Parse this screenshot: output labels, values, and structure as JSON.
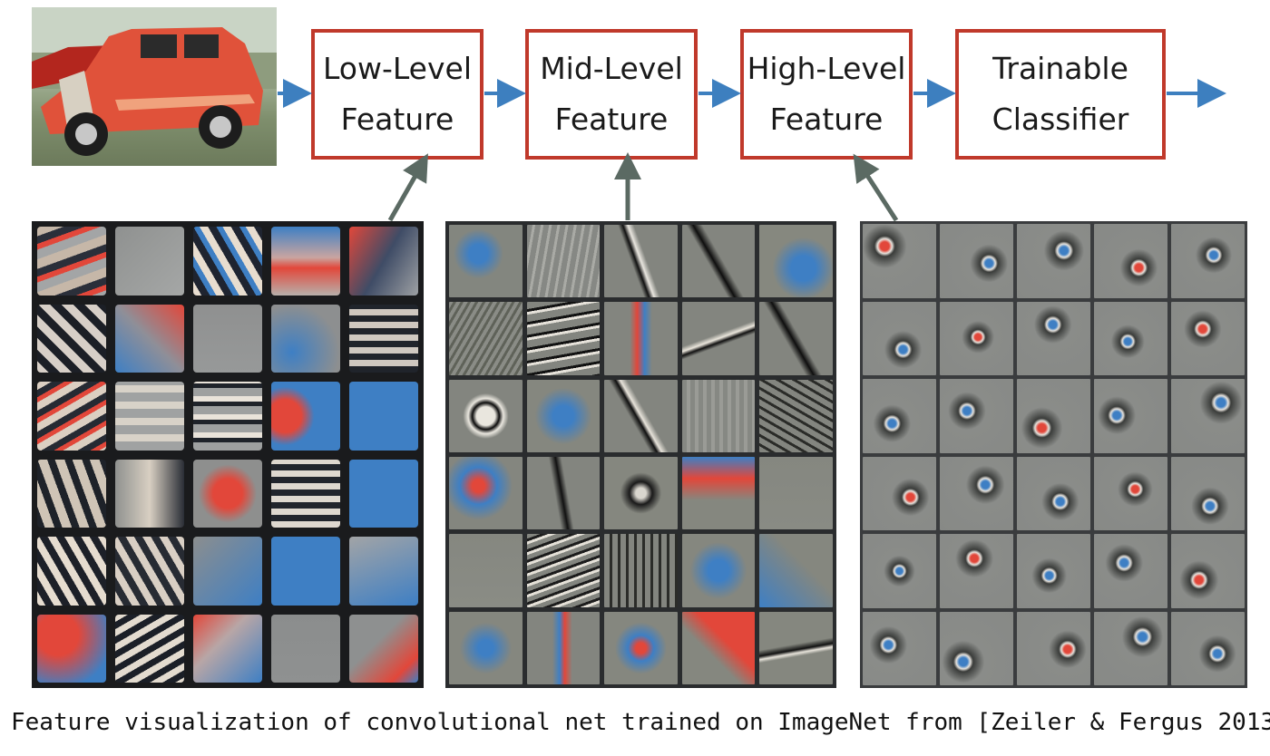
{
  "pipeline": {
    "stages": [
      {
        "id": "low",
        "label": "Low-Level\nFeature"
      },
      {
        "id": "mid",
        "label": "Mid-Level\nFeature"
      },
      {
        "id": "high",
        "label": "High-Level\nFeature"
      },
      {
        "id": "classifier",
        "label": "Trainable\nClassifier"
      }
    ]
  },
  "colors": {
    "box_border": "#c0392b",
    "flow_arrow": "#3d7fbf",
    "pointer_arrow": "#5b6a63",
    "filter_red": "#e2473a",
    "filter_blue": "#3e7fc4"
  },
  "caption": "Feature visualization of convolutional net trained on ImageNet from [Zeiler & Fergus 2013]"
}
